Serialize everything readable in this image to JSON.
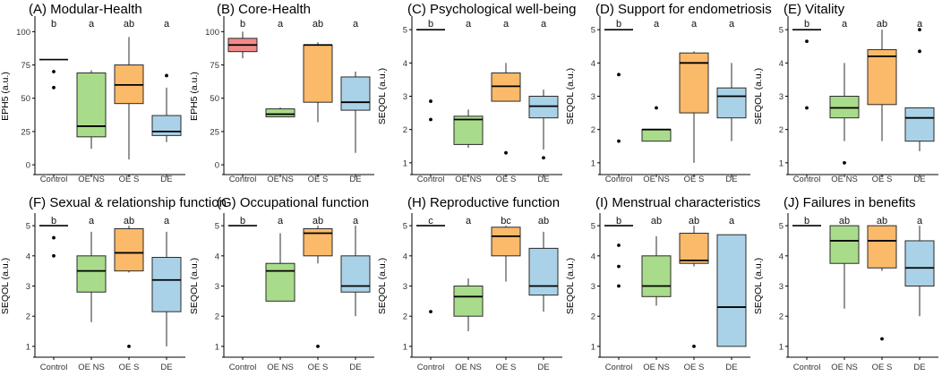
{
  "chart_data": {
    "type": "boxplot",
    "colors": {
      "Control": "#F08A8A",
      "OE NS": "#A8DC8A",
      "OE S": "#FBB96A",
      "DE": "#A9D2E8"
    },
    "categories": [
      "Control",
      "OE NS",
      "OE S",
      "DE"
    ],
    "panels": [
      {
        "title": "(A) Modular-Health",
        "ylabel": "EPH5 (a.u.)",
        "ylim": [
          -6,
          109
        ],
        "yticks": [
          0,
          25,
          50,
          75,
          100
        ],
        "letters": [
          "b",
          "a",
          "ab",
          "a"
        ],
        "groups": [
          {
            "name": "Control",
            "q1": 79,
            "median": 79,
            "q3": 79,
            "wlo": 79,
            "whi": 79,
            "outliers": [
              70,
              58
            ]
          },
          {
            "name": "OE NS",
            "q1": 21,
            "median": 29,
            "q3": 69,
            "wlo": 12,
            "whi": 71,
            "outliers": []
          },
          {
            "name": "OE S",
            "q1": 46,
            "median": 60,
            "q3": 75,
            "wlo": 4,
            "whi": 96,
            "outliers": []
          },
          {
            "name": "DE",
            "q1": 22,
            "median": 25,
            "q3": 37,
            "wlo": 17,
            "whi": 58,
            "outliers": [
              67
            ]
          }
        ]
      },
      {
        "title": "(B) Core-Health",
        "ylabel": "EPH5 (a.u.)",
        "ylim": [
          -6,
          109
        ],
        "yticks": [
          0,
          25,
          50,
          75,
          100
        ],
        "letters": [
          "b",
          "a",
          "ab",
          "a"
        ],
        "groups": [
          {
            "name": "Control",
            "q1": 85,
            "median": 90,
            "q3": 95,
            "wlo": 80,
            "whi": 100,
            "outliers": []
          },
          {
            "name": "OE NS",
            "q1": 36,
            "median": 38,
            "q3": 42,
            "wlo": 36,
            "whi": 43,
            "outliers": []
          },
          {
            "name": "OE S",
            "q1": 47,
            "median": 90,
            "q3": 90,
            "wlo": 32,
            "whi": 92,
            "outliers": []
          },
          {
            "name": "DE",
            "q1": 41,
            "median": 47,
            "q3": 66,
            "wlo": 9,
            "whi": 70,
            "outliers": []
          }
        ]
      },
      {
        "title": "(C) Psychological well-being",
        "ylabel": "SEQOL (a.u.)",
        "ylim": [
          0.7,
          5.3
        ],
        "yticks": [
          1,
          2,
          3,
          4,
          5
        ],
        "letters": [
          "b",
          "a",
          "a",
          "a"
        ],
        "groups": [
          {
            "name": "Control",
            "q1": 5,
            "median": 5,
            "q3": 5,
            "wlo": 5,
            "whi": 5,
            "outliers": [
              2.85,
              2.3
            ]
          },
          {
            "name": "OE NS",
            "q1": 1.55,
            "median": 2.3,
            "q3": 2.4,
            "wlo": 1.45,
            "whi": 2.6,
            "outliers": []
          },
          {
            "name": "OE S",
            "q1": 2.85,
            "median": 3.3,
            "q3": 3.7,
            "wlo": 2.85,
            "whi": 4.0,
            "outliers": [
              1.3
            ]
          },
          {
            "name": "DE",
            "q1": 2.35,
            "median": 2.7,
            "q3": 3.0,
            "wlo": 1.4,
            "whi": 3.2,
            "outliers": [
              1.15
            ]
          }
        ]
      },
      {
        "title": "(D) Support for endometriosis",
        "ylabel": "SEQOL (a.u.)",
        "ylim": [
          0.7,
          5.3
        ],
        "yticks": [
          1,
          2,
          3,
          4,
          5
        ],
        "letters": [
          "b",
          "a",
          "a",
          "a"
        ],
        "groups": [
          {
            "name": "Control",
            "q1": 5,
            "median": 5,
            "q3": 5,
            "wlo": 5,
            "whi": 5,
            "outliers": [
              3.65,
              1.65
            ]
          },
          {
            "name": "OE NS",
            "q1": 1.65,
            "median": 2.0,
            "q3": 2.0,
            "wlo": 1.65,
            "whi": 2.0,
            "outliers": [
              2.65
            ]
          },
          {
            "name": "OE S",
            "q1": 2.5,
            "median": 4.0,
            "q3": 4.3,
            "wlo": 1.0,
            "whi": 4.35,
            "outliers": []
          },
          {
            "name": "DE",
            "q1": 2.35,
            "median": 3.0,
            "q3": 3.25,
            "wlo": 1.65,
            "whi": 4.0,
            "outliers": []
          }
        ]
      },
      {
        "title": "(E) Vitality",
        "ylabel": "SEQOL (a.u.)",
        "ylim": [
          0.7,
          5.3
        ],
        "yticks": [
          1,
          2,
          3,
          4,
          5
        ],
        "letters": [
          "b",
          "a",
          "ab",
          "a"
        ],
        "groups": [
          {
            "name": "Control",
            "q1": 5,
            "median": 5,
            "q3": 5,
            "wlo": 5,
            "whi": 5,
            "outliers": [
              4.65,
              2.65
            ]
          },
          {
            "name": "OE NS",
            "q1": 2.35,
            "median": 2.65,
            "q3": 3.0,
            "wlo": 1.65,
            "whi": 4.0,
            "outliers": [
              1.0
            ]
          },
          {
            "name": "OE S",
            "q1": 2.75,
            "median": 4.2,
            "q3": 4.4,
            "wlo": 1.65,
            "whi": 5.0,
            "outliers": []
          },
          {
            "name": "DE",
            "q1": 1.65,
            "median": 2.35,
            "q3": 2.65,
            "wlo": 1.35,
            "whi": 2.65,
            "outliers": [
              5.0,
              4.35
            ]
          }
        ]
      },
      {
        "title": "(F) Sexual & relationship function",
        "ylabel": "SEQOL (a.u.)",
        "ylim": [
          0.7,
          5.3
        ],
        "yticks": [
          1,
          2,
          3,
          4,
          5
        ],
        "letters": [
          "b",
          "a",
          "ab",
          "a"
        ],
        "groups": [
          {
            "name": "Control",
            "q1": 5,
            "median": 5,
            "q3": 5,
            "wlo": 5,
            "whi": 5,
            "outliers": [
              4.6,
              4.0
            ]
          },
          {
            "name": "OE NS",
            "q1": 2.8,
            "median": 3.5,
            "q3": 4.0,
            "wlo": 1.8,
            "whi": 4.8,
            "outliers": []
          },
          {
            "name": "OE S",
            "q1": 3.5,
            "median": 4.1,
            "q3": 4.9,
            "wlo": 3.45,
            "whi": 5.0,
            "outliers": [
              1.0
            ]
          },
          {
            "name": "DE",
            "q1": 2.15,
            "median": 3.2,
            "q3": 3.95,
            "wlo": 1.0,
            "whi": 4.8,
            "outliers": []
          }
        ]
      },
      {
        "title": "(G) Occupational function",
        "ylabel": "SEQOL (a.u.)",
        "ylim": [
          0.7,
          5.3
        ],
        "yticks": [
          1,
          2,
          3,
          4,
          5
        ],
        "letters": [
          "b",
          "a",
          "ab",
          "a"
        ],
        "groups": [
          {
            "name": "Control",
            "q1": 5,
            "median": 5,
            "q3": 5,
            "wlo": 5,
            "whi": 5,
            "outliers": []
          },
          {
            "name": "OE NS",
            "q1": 2.5,
            "median": 3.5,
            "q3": 3.75,
            "wlo": 2.5,
            "whi": 4.75,
            "outliers": []
          },
          {
            "name": "OE S",
            "q1": 4.0,
            "median": 4.75,
            "q3": 4.9,
            "wlo": 3.75,
            "whi": 5.0,
            "outliers": [
              1.0
            ]
          },
          {
            "name": "DE",
            "q1": 2.8,
            "median": 3.0,
            "q3": 4.0,
            "wlo": 2.0,
            "whi": 5.0,
            "outliers": []
          }
        ]
      },
      {
        "title": "(H) Reproductive function",
        "ylabel": "SEQOL (a.u.)",
        "ylim": [
          0.7,
          5.3
        ],
        "yticks": [
          1,
          2,
          3,
          4,
          5
        ],
        "letters": [
          "c",
          "a",
          "bc",
          "ab"
        ],
        "groups": [
          {
            "name": "Control",
            "q1": 5,
            "median": 5,
            "q3": 5,
            "wlo": 5,
            "whi": 5,
            "outliers": [
              2.15
            ]
          },
          {
            "name": "OE NS",
            "q1": 2.0,
            "median": 2.65,
            "q3": 3.0,
            "wlo": 1.5,
            "whi": 3.25,
            "outliers": []
          },
          {
            "name": "OE S",
            "q1": 4.0,
            "median": 4.65,
            "q3": 4.95,
            "wlo": 3.15,
            "whi": 5.0,
            "outliers": []
          },
          {
            "name": "DE",
            "q1": 2.7,
            "median": 3.0,
            "q3": 4.25,
            "wlo": 2.15,
            "whi": 4.8,
            "outliers": []
          }
        ]
      },
      {
        "title": "(I) Menstrual characteristics",
        "ylabel": "SEQOL (a.u.)",
        "ylim": [
          0.7,
          5.3
        ],
        "yticks": [
          1,
          2,
          3,
          4,
          5
        ],
        "letters": [
          "b",
          "ab",
          "ab",
          "a"
        ],
        "groups": [
          {
            "name": "Control",
            "q1": 5,
            "median": 5,
            "q3": 5,
            "wlo": 5,
            "whi": 5,
            "outliers": [
              4.35,
              3.65,
              3.0
            ]
          },
          {
            "name": "OE NS",
            "q1": 2.65,
            "median": 3.0,
            "q3": 4.0,
            "wlo": 2.35,
            "whi": 4.65,
            "outliers": []
          },
          {
            "name": "OE S",
            "q1": 3.75,
            "median": 3.85,
            "q3": 4.75,
            "wlo": 3.65,
            "whi": 5.0,
            "outliers": [
              1.0
            ]
          },
          {
            "name": "DE",
            "q1": 1.0,
            "median": 2.3,
            "q3": 4.7,
            "wlo": 1.0,
            "whi": 4.7,
            "outliers": []
          }
        ]
      },
      {
        "title": "(J) Failures in benefits",
        "ylabel": "SEQOL (a.u.)",
        "ylim": [
          0.7,
          5.3
        ],
        "yticks": [
          1,
          2,
          3,
          4,
          5
        ],
        "letters": [
          "b",
          "ab",
          "ab",
          "a"
        ],
        "groups": [
          {
            "name": "Control",
            "q1": 5,
            "median": 5,
            "q3": 5,
            "wlo": 5,
            "whi": 5,
            "outliers": []
          },
          {
            "name": "OE NS",
            "q1": 3.75,
            "median": 4.5,
            "q3": 5.0,
            "wlo": 2.25,
            "whi": 5.0,
            "outliers": []
          },
          {
            "name": "OE S",
            "q1": 3.6,
            "median": 4.5,
            "q3": 5.0,
            "wlo": 3.5,
            "whi": 5.0,
            "outliers": [
              1.25
            ]
          },
          {
            "name": "DE",
            "q1": 3.0,
            "median": 3.6,
            "q3": 4.5,
            "wlo": 2.0,
            "whi": 5.0,
            "outliers": []
          }
        ]
      }
    ]
  }
}
